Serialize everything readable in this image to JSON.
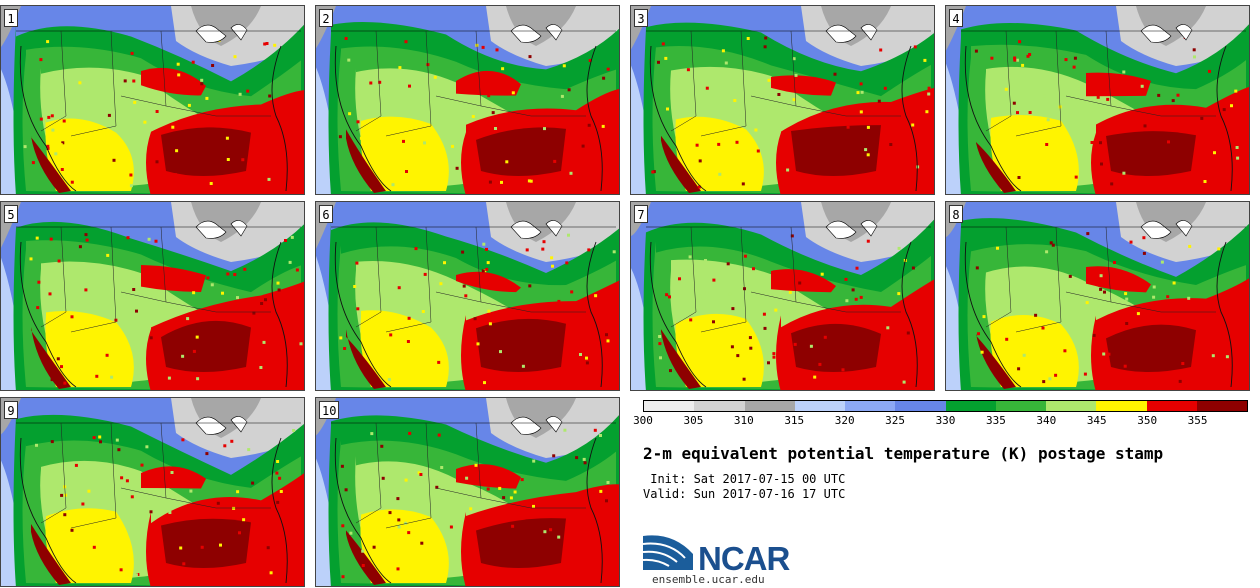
{
  "panels": [
    {
      "label": "1"
    },
    {
      "label": "2"
    },
    {
      "label": "3"
    },
    {
      "label": "4"
    },
    {
      "label": "5"
    },
    {
      "label": "6"
    },
    {
      "label": "7"
    },
    {
      "label": "8"
    },
    {
      "label": "9"
    },
    {
      "label": "10"
    }
  ],
  "colorbar": {
    "colors": [
      "#ededed",
      "#d2d2d2",
      "#a7a7a7",
      "#bcd1fa",
      "#8ca8f4",
      "#6786e8",
      "#04a02f",
      "#37b639",
      "#aee86d",
      "#fff400",
      "#e60000",
      "#8e0000"
    ],
    "labels": [
      "300",
      "305",
      "310",
      "315",
      "320",
      "325",
      "330",
      "335",
      "340",
      "345",
      "350",
      "355"
    ]
  },
  "title": "2-m equivalent potential temperature (K) postage stamp",
  "init": " Init: Sat 2017-07-15 00 UTC",
  "valid": "Valid: Sun 2017-07-16 17 UTC",
  "logo": {
    "text": "NCAR"
  },
  "site": "ensemble.ucar.edu"
}
